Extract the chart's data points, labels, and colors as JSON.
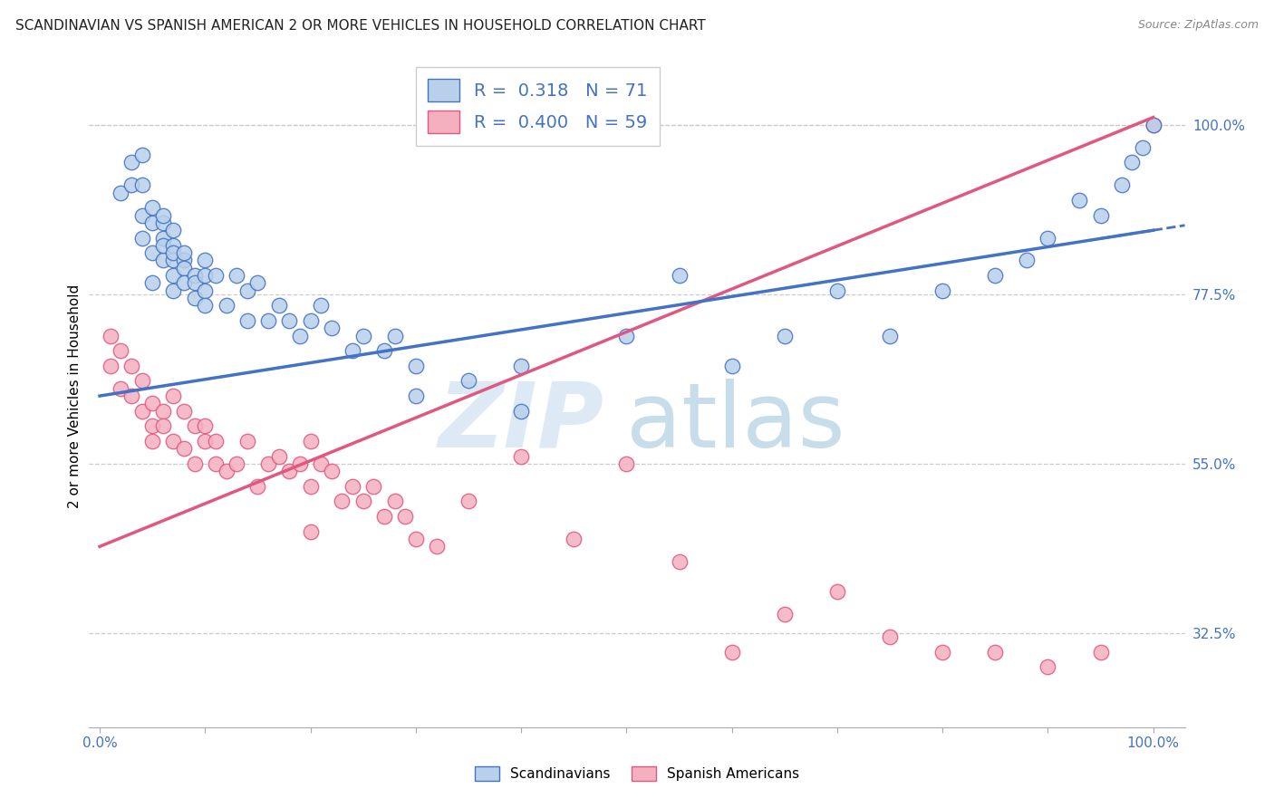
{
  "title": "SCANDINAVIAN VS SPANISH AMERICAN 2 OR MORE VEHICLES IN HOUSEHOLD CORRELATION CHART",
  "source": "Source: ZipAtlas.com",
  "ylabel": "2 or more Vehicles in Household",
  "xlim": [
    -1,
    103
  ],
  "ylim": [
    20,
    108
  ],
  "xtick_pos": [
    0,
    10,
    20,
    30,
    40,
    50,
    60,
    70,
    80,
    90,
    100
  ],
  "xtick_labels": [
    "0.0%",
    "",
    "",
    "",
    "",
    "",
    "",
    "",
    "",
    "",
    "100.0%"
  ],
  "ytick_pos": [
    32.5,
    55.0,
    77.5,
    100.0
  ],
  "ytick_labels": [
    "32.5%",
    "55.0%",
    "77.5%",
    "100.0%"
  ],
  "legend1_label": "R =  0.318   N = 71",
  "legend2_label": "R =  0.400   N = 59",
  "legend_scand": "Scandinavians",
  "legend_span": "Spanish Americans",
  "scand_face_color": "#b8d0ea",
  "span_face_color": "#f5b0c0",
  "scand_edge_color": "#4472c4",
  "span_edge_color": "#e05880",
  "scand_line_color": "#4472c4",
  "span_line_color": "#e05880",
  "title_color": "#222222",
  "source_color": "#888888",
  "axis_tick_color": "#4472c4",
  "grid_color": "#cccccc",
  "watermark_zip_color": "#cce0f0",
  "watermark_atlas_color": "#aaccdf",
  "scand_x": [
    2,
    3,
    3,
    4,
    4,
    4,
    4,
    5,
    5,
    5,
    5,
    6,
    6,
    6,
    6,
    6,
    7,
    7,
    7,
    7,
    7,
    7,
    8,
    8,
    8,
    8,
    9,
    9,
    9,
    10,
    10,
    10,
    10,
    11,
    12,
    13,
    14,
    14,
    15,
    16,
    17,
    18,
    19,
    20,
    21,
    22,
    24,
    25,
    27,
    28,
    30,
    35,
    40,
    50,
    55,
    60,
    70,
    75,
    80,
    85,
    88,
    90,
    93,
    95,
    97,
    98,
    99,
    100,
    65,
    40,
    30
  ],
  "scand_y": [
    91,
    92,
    95,
    88,
    92,
    96,
    85,
    83,
    87,
    79,
    89,
    85,
    87,
    82,
    84,
    88,
    82,
    84,
    78,
    83,
    80,
    86,
    82,
    81,
    79,
    83,
    80,
    77,
    79,
    82,
    80,
    78,
    76,
    80,
    76,
    80,
    78,
    74,
    79,
    74,
    76,
    74,
    72,
    74,
    76,
    73,
    70,
    72,
    70,
    72,
    68,
    66,
    68,
    72,
    80,
    68,
    78,
    72,
    78,
    80,
    82,
    85,
    90,
    88,
    92,
    95,
    97,
    100,
    72,
    62,
    64
  ],
  "span_x": [
    1,
    1,
    2,
    2,
    3,
    3,
    4,
    4,
    5,
    5,
    5,
    6,
    6,
    7,
    7,
    8,
    8,
    9,
    9,
    10,
    10,
    11,
    11,
    12,
    13,
    14,
    15,
    16,
    17,
    18,
    19,
    20,
    20,
    21,
    22,
    23,
    24,
    25,
    26,
    27,
    28,
    29,
    30,
    32,
    35,
    40,
    45,
    50,
    55,
    60,
    65,
    70,
    75,
    80,
    85,
    90,
    95,
    100,
    20
  ],
  "span_y": [
    68,
    72,
    65,
    70,
    64,
    68,
    62,
    66,
    60,
    63,
    58,
    62,
    60,
    64,
    58,
    62,
    57,
    60,
    55,
    58,
    60,
    55,
    58,
    54,
    55,
    58,
    52,
    55,
    56,
    54,
    55,
    58,
    52,
    55,
    54,
    50,
    52,
    50,
    52,
    48,
    50,
    48,
    45,
    44,
    50,
    56,
    45,
    55,
    42,
    30,
    35,
    38,
    32,
    30,
    30,
    28,
    30,
    100,
    46
  ],
  "scand_trend": [
    0.318,
    71,
    64.0,
    0.22
  ],
  "span_trend": [
    0.4,
    59,
    44.0,
    0.57
  ]
}
